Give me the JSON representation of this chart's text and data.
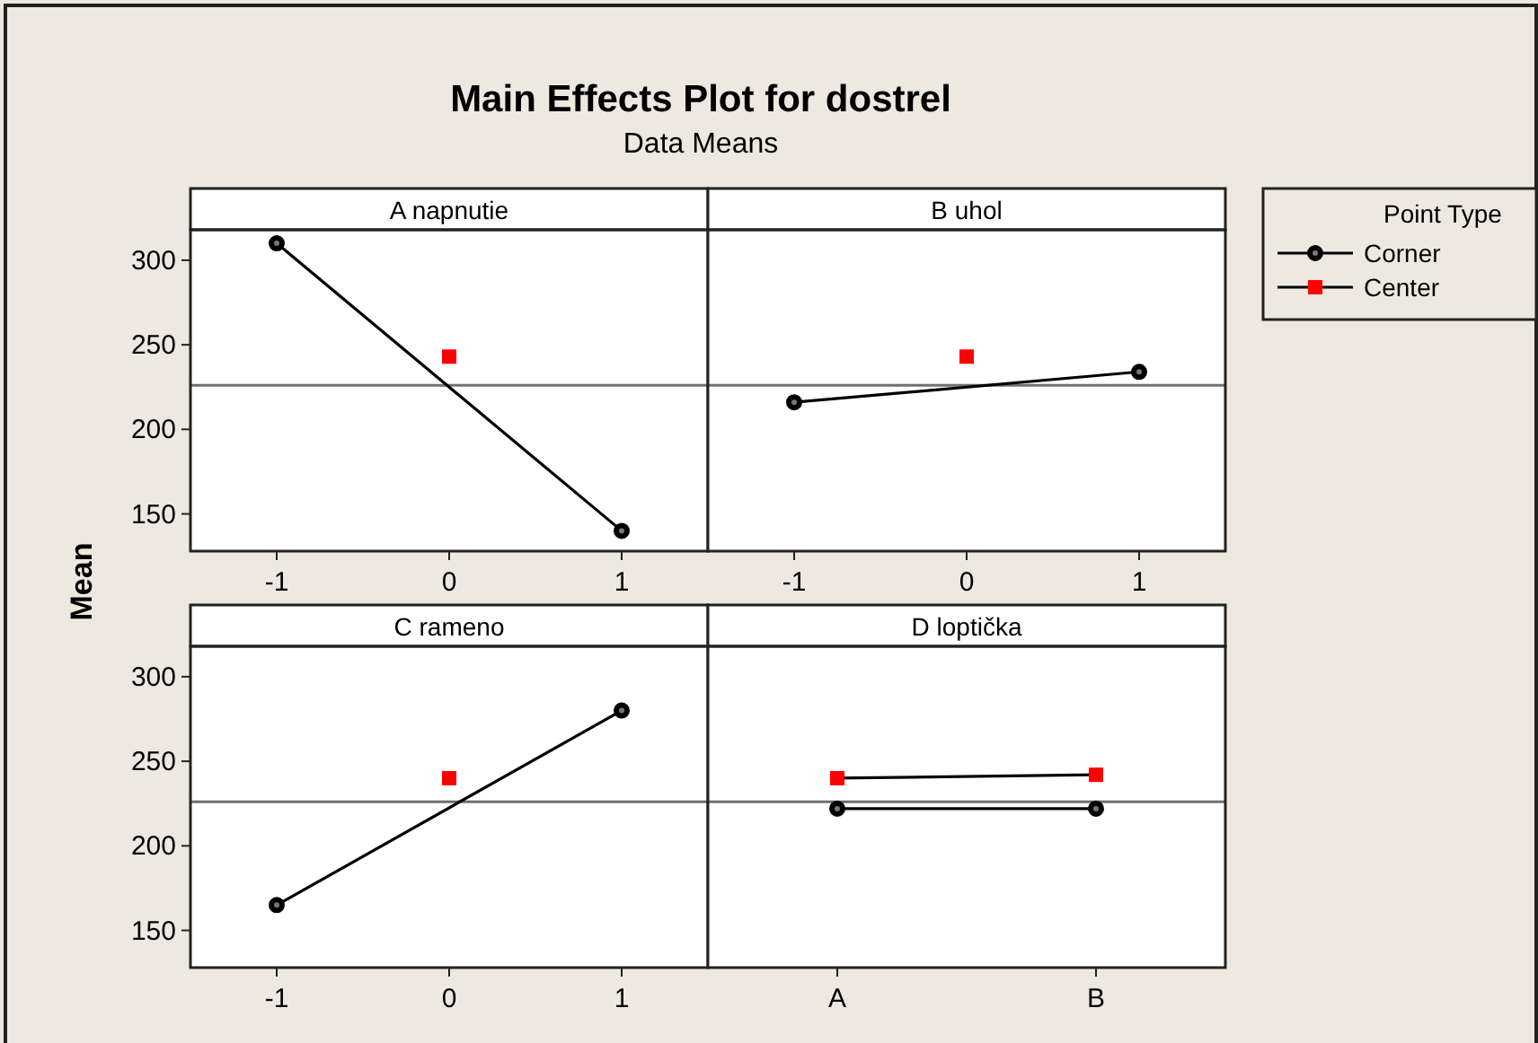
{
  "chart_data": [
    {
      "type": "other",
      "title": "Main Effects Plot for dostrel",
      "subtitle": "Data Means"
    },
    {
      "type": "line",
      "title": "A napnutie",
      "ylabel": "Mean",
      "xlim": [
        -1.5,
        1.5
      ],
      "xticks": [
        -1,
        0,
        1
      ],
      "ylim": [
        128,
        318
      ],
      "yticks": [
        150,
        200,
        250,
        300
      ],
      "legend": "right",
      "legend_title": "Point Type",
      "ref_lines": [
        {
          "axis": "y",
          "value": 226,
          "color": "#707070"
        }
      ],
      "series": [
        {
          "name": "Corner",
          "color": "#000000",
          "marker": "circle",
          "x": [
            -1,
            1
          ],
          "values": [
            310,
            140
          ]
        },
        {
          "name": "Center",
          "color": "#ff0000",
          "marker": "square",
          "x": [
            0
          ],
          "values": [
            243
          ]
        }
      ]
    },
    {
      "type": "line",
      "title": "B uhol",
      "xlim": [
        -1.5,
        1.5
      ],
      "xticks": [
        -1,
        0,
        1
      ],
      "ylim": [
        128,
        318
      ],
      "tick_labels": "x",
      "ref_lines": [
        {
          "axis": "y",
          "value": 226,
          "color": "#707070"
        }
      ],
      "series": [
        {
          "color": "#000000",
          "marker": "circle",
          "x": [
            -1,
            1
          ],
          "values": [
            216,
            234
          ]
        },
        {
          "color": "#ff0000",
          "marker": "square",
          "x": [
            0
          ],
          "values": [
            243
          ]
        }
      ]
    },
    {
      "type": "line",
      "title": "C rameno",
      "xlim": [
        -1.5,
        1.5
      ],
      "xticks": [
        -1,
        0,
        1
      ],
      "ylim": [
        128,
        318
      ],
      "yticks": [
        150,
        200,
        250,
        300
      ],
      "ref_lines": [
        {
          "axis": "y",
          "value": 226,
          "color": "#707070"
        }
      ],
      "series": [
        {
          "color": "#000000",
          "marker": "circle",
          "x": [
            -1,
            1
          ],
          "values": [
            165,
            280
          ]
        },
        {
          "color": "#ff0000",
          "marker": "square",
          "x": [
            0
          ],
          "values": [
            240
          ]
        }
      ]
    },
    {
      "type": "line",
      "title": "D loptička",
      "categories": [
        "A",
        "B"
      ],
      "ylim": [
        128,
        318
      ],
      "tick_labels": "x",
      "ref_lines": [
        {
          "axis": "y",
          "value": 226,
          "color": "#707070"
        }
      ],
      "series": [
        {
          "color": "#000000",
          "marker": "circle",
          "values": [
            222,
            222
          ]
        },
        {
          "color": "#ff0000",
          "marker": "square",
          "values": [
            240,
            242
          ]
        }
      ]
    }
  ]
}
